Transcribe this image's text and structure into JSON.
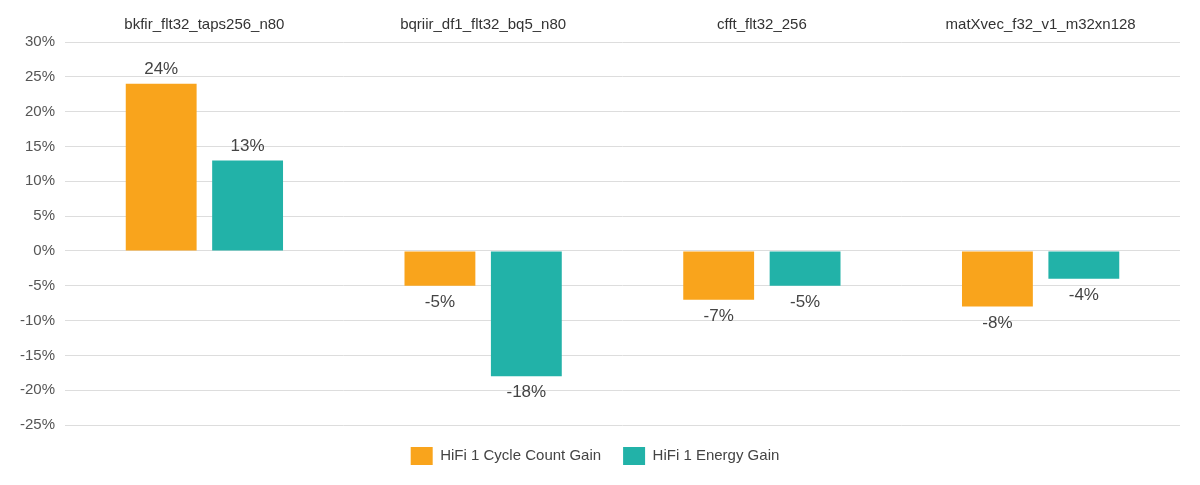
{
  "chart_data": {
    "type": "bar",
    "categories": [
      "bkfir_flt32_taps256_n80",
      "bqriir_df1_flt32_bq5_n80",
      "cfft_flt32_256",
      "matXvec_f32_v1_m32xn128"
    ],
    "series": [
      {
        "name": "HiFi 1 Cycle Count Gain",
        "color": "#f9a41c",
        "values": [
          24,
          -5,
          -7,
          -8
        ],
        "value_labels": [
          "24%",
          "-5%",
          "-7%",
          "-8%"
        ]
      },
      {
        "name": "HiFi 1 Energy Gain",
        "color": "#22b2a8",
        "values": [
          13,
          -18,
          -5,
          -4
        ],
        "value_labels": [
          "13%",
          "-18%",
          "-5%",
          "-4%"
        ]
      }
    ],
    "ylim": [
      -25,
      30
    ],
    "yticks": [
      {
        "value": -25,
        "label": "-25%"
      },
      {
        "value": -20,
        "label": "-20%"
      },
      {
        "value": -15,
        "label": "-15%"
      },
      {
        "value": -10,
        "label": "-10%"
      },
      {
        "value": -5,
        "label": "-5%"
      },
      {
        "value": 0,
        "label": "0%"
      },
      {
        "value": 5,
        "label": "5%"
      },
      {
        "value": 10,
        "label": "10%"
      },
      {
        "value": 15,
        "label": "15%"
      },
      {
        "value": 20,
        "label": "20%"
      },
      {
        "value": 25,
        "label": "25%"
      },
      {
        "value": 30,
        "label": "30%"
      }
    ],
    "grid": true,
    "legend": "bottom",
    "data_labels": true
  }
}
